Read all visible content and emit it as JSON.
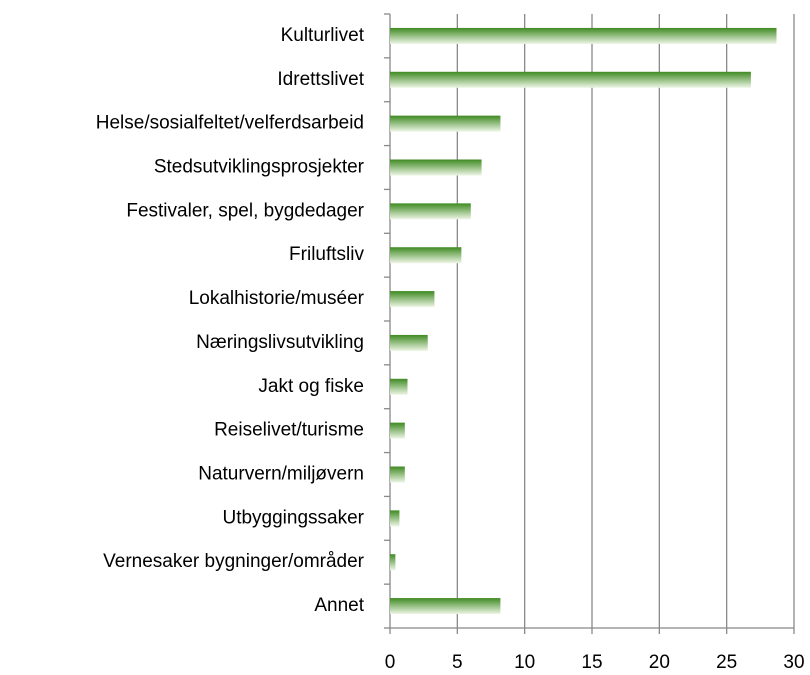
{
  "chart_data": {
    "type": "bar",
    "orientation": "horizontal",
    "categories": [
      "Kulturlivet",
      "Idrettslivet",
      "Helse/sosialfeltet/velferdsarbeid",
      "Stedsutviklingsprosjekter",
      "Festivaler, spel, bygdedager",
      "Friluftsliv",
      "Lokalhistorie/muséer",
      "Næringslivsutvikling",
      "Jakt og fiske",
      "Reiselivet/turisme",
      "Naturvern/miljøvern",
      "Utbyggingssaker",
      "Vernesaker bygninger/områder",
      "Annet"
    ],
    "values": [
      28.7,
      26.8,
      8.2,
      6.8,
      6.0,
      5.3,
      3.3,
      2.8,
      1.3,
      1.1,
      1.1,
      0.7,
      0.4,
      8.2
    ],
    "color": "#3f8a22",
    "xlim": [
      0,
      30
    ],
    "xticks": [
      0,
      5,
      10,
      15,
      20,
      25,
      30
    ],
    "grid": true
  }
}
